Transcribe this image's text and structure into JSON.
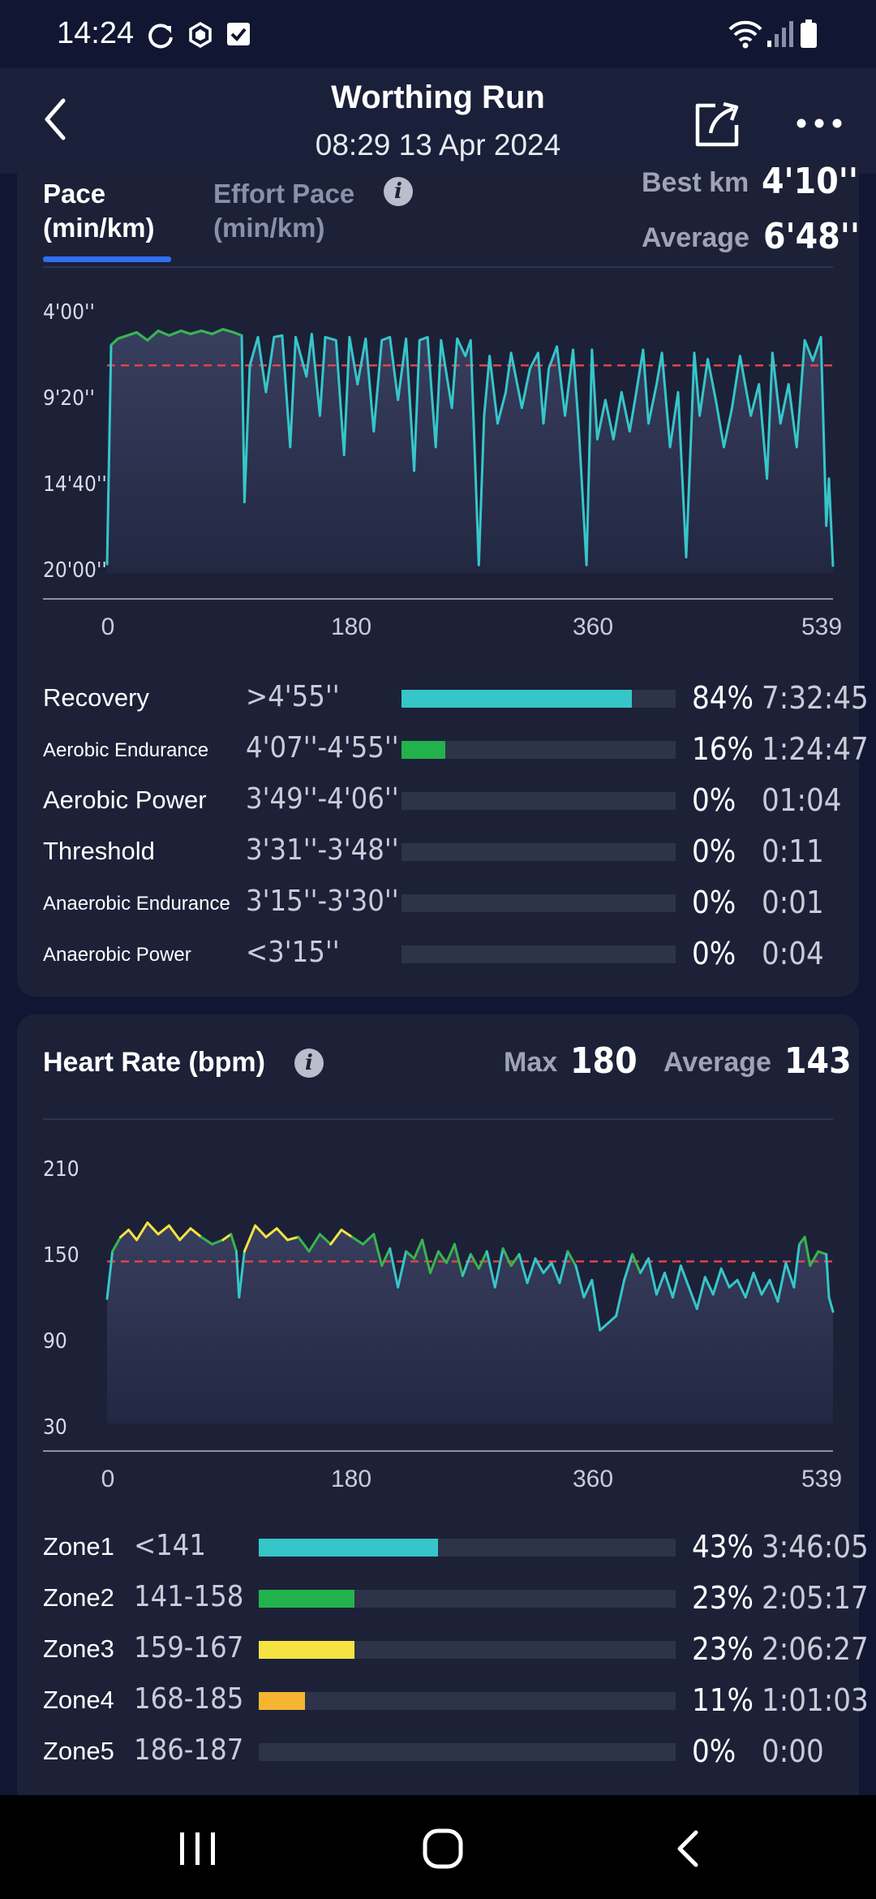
{
  "status_bar": {
    "time": "14:24"
  },
  "header": {
    "title": "Worthing Run",
    "subtitle": "08:29 13 Apr 2024"
  },
  "pace": {
    "tab_active_line1": "Pace",
    "tab_active_line2": "(min/km)",
    "tab_inactive_line1": "Effort Pace",
    "tab_inactive_line2": "(min/km)",
    "best_label": "Best km",
    "best_value": "4'10''",
    "avg_label": "Average",
    "avg_value": "6'48''",
    "y_ticks": [
      "4'00''",
      "9'20''",
      "14'40''",
      "20'00''"
    ],
    "x_ticks": [
      "0",
      "180",
      "360",
      "539"
    ],
    "zones": [
      {
        "name": "Recovery",
        "range": ">4'55''",
        "pct": "84%",
        "time": "7:32:45",
        "fill": 0.84,
        "color": "#36c6c9",
        "small": false
      },
      {
        "name": "Aerobic Endurance",
        "range": "4'07''-4'55''",
        "pct": "16%",
        "time": "1:24:47",
        "fill": 0.16,
        "color": "#22b24c",
        "small": true
      },
      {
        "name": "Aerobic Power",
        "range": "3'49''-4'06''",
        "pct": "0%",
        "time": "01:04",
        "fill": 0,
        "color": "#f5e342",
        "small": false
      },
      {
        "name": "Threshold",
        "range": "3'31''-3'48''",
        "pct": "0%",
        "time": "0:11",
        "fill": 0,
        "color": "#f5b531",
        "small": false
      },
      {
        "name": "Anaerobic Endurance",
        "range": "3'15''-3'30''",
        "pct": "0%",
        "time": "0:01",
        "fill": 0,
        "color": "#e86a2c",
        "small": true
      },
      {
        "name": "Anaerobic Power",
        "range": "<3'15''",
        "pct": "0%",
        "time": "0:04",
        "fill": 0,
        "color": "#e0342c",
        "small": true
      }
    ]
  },
  "heart_rate": {
    "title": "Heart Rate (bpm)",
    "max_label": "Max",
    "max_value": "180",
    "avg_label": "Average",
    "avg_value": "143",
    "y_ticks": [
      "210",
      "150",
      "90",
      "30"
    ],
    "x_ticks": [
      "0",
      "180",
      "360",
      "539"
    ],
    "zones": [
      {
        "name": "Zone1",
        "range": "<141",
        "pct": "43%",
        "time": "3:46:05",
        "fill": 0.43,
        "color": "#36c6c9"
      },
      {
        "name": "Zone2",
        "range": "141-158",
        "pct": "23%",
        "time": "2:05:17",
        "fill": 0.23,
        "color": "#22b24c"
      },
      {
        "name": "Zone3",
        "range": "159-167",
        "pct": "23%",
        "time": "2:06:27",
        "fill": 0.23,
        "color": "#f5e342"
      },
      {
        "name": "Zone4",
        "range": "168-185",
        "pct": "11%",
        "time": "1:01:03",
        "fill": 0.11,
        "color": "#f5b531"
      },
      {
        "name": "Zone5",
        "range": "186-187",
        "pct": "0%",
        "time": "0:00",
        "fill": 0,
        "color": "#e86a2c"
      }
    ]
  },
  "chart_data": [
    {
      "type": "line",
      "ylabel": "Pace (min/km)",
      "xlim": [
        0,
        539
      ],
      "ylim_minutes": [
        4.0,
        20.0
      ],
      "y_inverted": true,
      "reference_line_minutes": 6.8,
      "series": [
        {
          "values_minutes": [
            [
              0,
              19.5
            ],
            [
              3,
              5.5
            ],
            [
              8,
              5.1
            ],
            [
              15,
              4.9
            ],
            [
              22,
              4.7
            ],
            [
              30,
              5.2
            ],
            [
              38,
              4.6
            ],
            [
              46,
              4.9
            ],
            [
              55,
              4.6
            ],
            [
              62,
              4.8
            ],
            [
              70,
              4.6
            ],
            [
              78,
              4.8
            ],
            [
              86,
              4.5
            ],
            [
              94,
              4.7
            ],
            [
              100,
              4.9
            ],
            [
              102,
              15.5
            ],
            [
              106,
              6.8
            ],
            [
              112,
              5.0
            ],
            [
              118,
              8.5
            ],
            [
              124,
              5.0
            ],
            [
              130,
              4.9
            ],
            [
              136,
              12.0
            ],
            [
              140,
              5.0
            ],
            [
              148,
              7.5
            ],
            [
              152,
              4.8
            ],
            [
              158,
              10.0
            ],
            [
              162,
              5.0
            ],
            [
              170,
              5.2
            ],
            [
              176,
              12.5
            ],
            [
              180,
              5.0
            ],
            [
              186,
              8.0
            ],
            [
              192,
              5.1
            ],
            [
              198,
              11.0
            ],
            [
              204,
              5.2
            ],
            [
              210,
              5.0
            ],
            [
              216,
              9.0
            ],
            [
              222,
              5.1
            ],
            [
              228,
              13.5
            ],
            [
              232,
              5.2
            ],
            [
              238,
              5.0
            ],
            [
              244,
              12.0
            ],
            [
              248,
              5.2
            ],
            [
              256,
              9.5
            ],
            [
              260,
              5.1
            ],
            [
              266,
              6.2
            ],
            [
              270,
              5.2
            ],
            [
              276,
              19.5
            ],
            [
              280,
              10.0
            ],
            [
              284,
              6.2
            ],
            [
              290,
              10.5
            ],
            [
              296,
              8.5
            ],
            [
              300,
              6.0
            ],
            [
              308,
              9.5
            ],
            [
              314,
              7.0
            ],
            [
              320,
              6.0
            ],
            [
              324,
              10.5
            ],
            [
              328,
              7.0
            ],
            [
              334,
              5.6
            ],
            [
              340,
              10.0
            ],
            [
              346,
              5.8
            ],
            [
              350,
              10.5
            ],
            [
              356,
              19.5
            ],
            [
              360,
              5.8
            ],
            [
              364,
              11.5
            ],
            [
              370,
              9.0
            ],
            [
              376,
              11.5
            ],
            [
              382,
              8.5
            ],
            [
              388,
              11.0
            ],
            [
              392,
              9.0
            ],
            [
              398,
              5.8
            ],
            [
              402,
              10.5
            ],
            [
              408,
              8.0
            ],
            [
              412,
              6.0
            ],
            [
              418,
              12.0
            ],
            [
              424,
              8.5
            ],
            [
              430,
              19.0
            ],
            [
              436,
              6.0
            ],
            [
              440,
              10.0
            ],
            [
              446,
              6.4
            ],
            [
              452,
              9.0
            ],
            [
              458,
              12.0
            ],
            [
              464,
              9.5
            ],
            [
              470,
              6.2
            ],
            [
              478,
              10.0
            ],
            [
              484,
              8.0
            ],
            [
              490,
              14.0
            ],
            [
              494,
              6.0
            ],
            [
              500,
              10.5
            ],
            [
              506,
              8.0
            ],
            [
              512,
              12.0
            ],
            [
              518,
              5.2
            ],
            [
              524,
              6.5
            ],
            [
              530,
              5.0
            ],
            [
              534,
              17.0
            ],
            [
              536,
              14.0
            ],
            [
              539,
              19.6
            ]
          ]
        }
      ]
    },
    {
      "type": "line",
      "ylabel": "Heart Rate (bpm)",
      "xlim": [
        0,
        539
      ],
      "ylim": [
        30,
        210
      ],
      "reference_line": 143,
      "series": [
        {
          "values": [
            [
              0,
              117
            ],
            [
              4,
              150
            ],
            [
              10,
              160
            ],
            [
              16,
              165
            ],
            [
              22,
              158
            ],
            [
              30,
              170
            ],
            [
              38,
              162
            ],
            [
              46,
              168
            ],
            [
              54,
              158
            ],
            [
              62,
              166
            ],
            [
              70,
              160
            ],
            [
              78,
              155
            ],
            [
              86,
              158
            ],
            [
              92,
              162
            ],
            [
              96,
              150
            ],
            [
              98,
              118
            ],
            [
              102,
              150
            ],
            [
              110,
              168
            ],
            [
              118,
              160
            ],
            [
              126,
              166
            ],
            [
              134,
              158
            ],
            [
              142,
              160
            ],
            [
              150,
              150
            ],
            [
              158,
              162
            ],
            [
              166,
              155
            ],
            [
              174,
              165
            ],
            [
              182,
              160
            ],
            [
              190,
              155
            ],
            [
              198,
              162
            ],
            [
              204,
              140
            ],
            [
              210,
              152
            ],
            [
              216,
              125
            ],
            [
              222,
              150
            ],
            [
              228,
              145
            ],
            [
              234,
              158
            ],
            [
              240,
              135
            ],
            [
              246,
              150
            ],
            [
              252,
              142
            ],
            [
              258,
              155
            ],
            [
              264,
              133
            ],
            [
              270,
              148
            ],
            [
              276,
              138
            ],
            [
              282,
              150
            ],
            [
              288,
              125
            ],
            [
              294,
              152
            ],
            [
              300,
              140
            ],
            [
              306,
              148
            ],
            [
              312,
              128
            ],
            [
              318,
              145
            ],
            [
              324,
              135
            ],
            [
              330,
              142
            ],
            [
              336,
              128
            ],
            [
              342,
              150
            ],
            [
              348,
              140
            ],
            [
              354,
              118
            ],
            [
              360,
              130
            ],
            [
              366,
              95
            ],
            [
              372,
              100
            ],
            [
              378,
              105
            ],
            [
              384,
              130
            ],
            [
              390,
              148
            ],
            [
              396,
              135
            ],
            [
              402,
              145
            ],
            [
              408,
              120
            ],
            [
              414,
              135
            ],
            [
              420,
              118
            ],
            [
              426,
              140
            ],
            [
              432,
              125
            ],
            [
              438,
              110
            ],
            [
              444,
              132
            ],
            [
              450,
              120
            ],
            [
              456,
              138
            ],
            [
              462,
              125
            ],
            [
              468,
              130
            ],
            [
              474,
              118
            ],
            [
              480,
              135
            ],
            [
              486,
              120
            ],
            [
              492,
              130
            ],
            [
              498,
              115
            ],
            [
              504,
              142
            ],
            [
              510,
              125
            ],
            [
              514,
              155
            ],
            [
              518,
              160
            ],
            [
              522,
              140
            ],
            [
              528,
              150
            ],
            [
              534,
              148
            ],
            [
              536,
              118
            ],
            [
              539,
              108
            ]
          ]
        }
      ]
    }
  ]
}
